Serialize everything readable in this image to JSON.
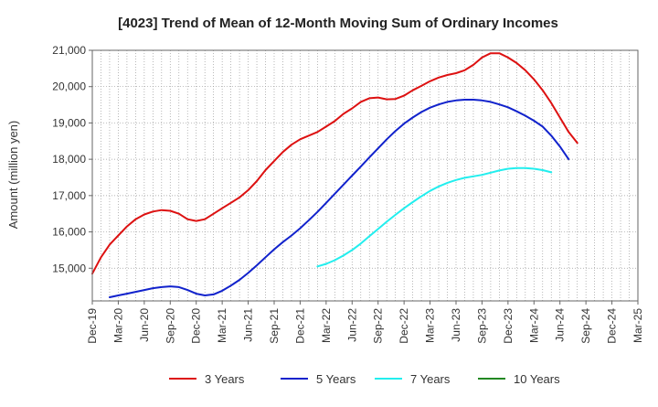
{
  "chart_data": {
    "type": "line",
    "title": "[4023]  Trend of Mean of 12-Month Moving Sum of Ordinary Incomes",
    "xlabel": "",
    "ylabel": "Amount (million yen)",
    "ylim": [
      14100,
      21000
    ],
    "yticks": [
      15000,
      16000,
      17000,
      18000,
      19000,
      20000,
      21000
    ],
    "ytick_labels": [
      "15,000",
      "16,000",
      "17,000",
      "18,000",
      "19,000",
      "20,000",
      "21,000"
    ],
    "x_range_months": [
      0,
      63
    ],
    "xtick_months": [
      0,
      3,
      6,
      9,
      12,
      15,
      18,
      21,
      24,
      27,
      30,
      33,
      36,
      39,
      42,
      45,
      48,
      51,
      54,
      57,
      60,
      63
    ],
    "xtick_labels": [
      "Dec-19",
      "Mar-20",
      "Jun-20",
      "Sep-20",
      "Dec-20",
      "Mar-21",
      "Jun-21",
      "Sep-21",
      "Dec-21",
      "Mar-22",
      "Jun-22",
      "Sep-22",
      "Dec-22",
      "Mar-23",
      "Jun-23",
      "Sep-23",
      "Dec-23",
      "Mar-24",
      "Jun-24",
      "Sep-24",
      "Dec-24",
      "Mar-25"
    ],
    "grid": true,
    "legend_position": "bottom",
    "series": [
      {
        "name": "3 Years",
        "color": "#dd1111",
        "start_month": 0,
        "values": [
          14850,
          15300,
          15650,
          15900,
          16150,
          16350,
          16480,
          16560,
          16600,
          16580,
          16500,
          16350,
          16300,
          16350,
          16500,
          16650,
          16800,
          16950,
          17150,
          17400,
          17700,
          17950,
          18200,
          18400,
          18550,
          18650,
          18750,
          18900,
          19050,
          19250,
          19400,
          19580,
          19680,
          19700,
          19650,
          19660,
          19750,
          19900,
          20020,
          20150,
          20250,
          20320,
          20370,
          20450,
          20600,
          20800,
          20920,
          20920,
          20800,
          20650,
          20450,
          20200,
          19900,
          19550,
          19150,
          18750,
          18450
        ]
      },
      {
        "name": "5 Years",
        "color": "#1122cc",
        "start_month": 2,
        "values": [
          14200,
          14250,
          14300,
          14350,
          14400,
          14450,
          14480,
          14500,
          14480,
          14400,
          14300,
          14250,
          14280,
          14380,
          14520,
          14680,
          14870,
          15080,
          15300,
          15520,
          15720,
          15900,
          16100,
          16320,
          16550,
          16800,
          17050,
          17300,
          17550,
          17800,
          18050,
          18300,
          18550,
          18780,
          18980,
          19150,
          19300,
          19420,
          19510,
          19580,
          19620,
          19640,
          19640,
          19620,
          19580,
          19510,
          19430,
          19320,
          19200,
          19060,
          18900,
          18650,
          18350,
          18000
        ]
      },
      {
        "name": "7 Years",
        "color": "#22eeee",
        "start_month": 26,
        "values": [
          15050,
          15120,
          15220,
          15350,
          15500,
          15680,
          15880,
          16080,
          16280,
          16470,
          16650,
          16820,
          16980,
          17130,
          17250,
          17350,
          17430,
          17490,
          17530,
          17570,
          17630,
          17690,
          17740,
          17760,
          17760,
          17740,
          17700,
          17640
        ]
      },
      {
        "name": "10 Years",
        "color": "#228822",
        "start_month": 0,
        "values": []
      }
    ]
  }
}
